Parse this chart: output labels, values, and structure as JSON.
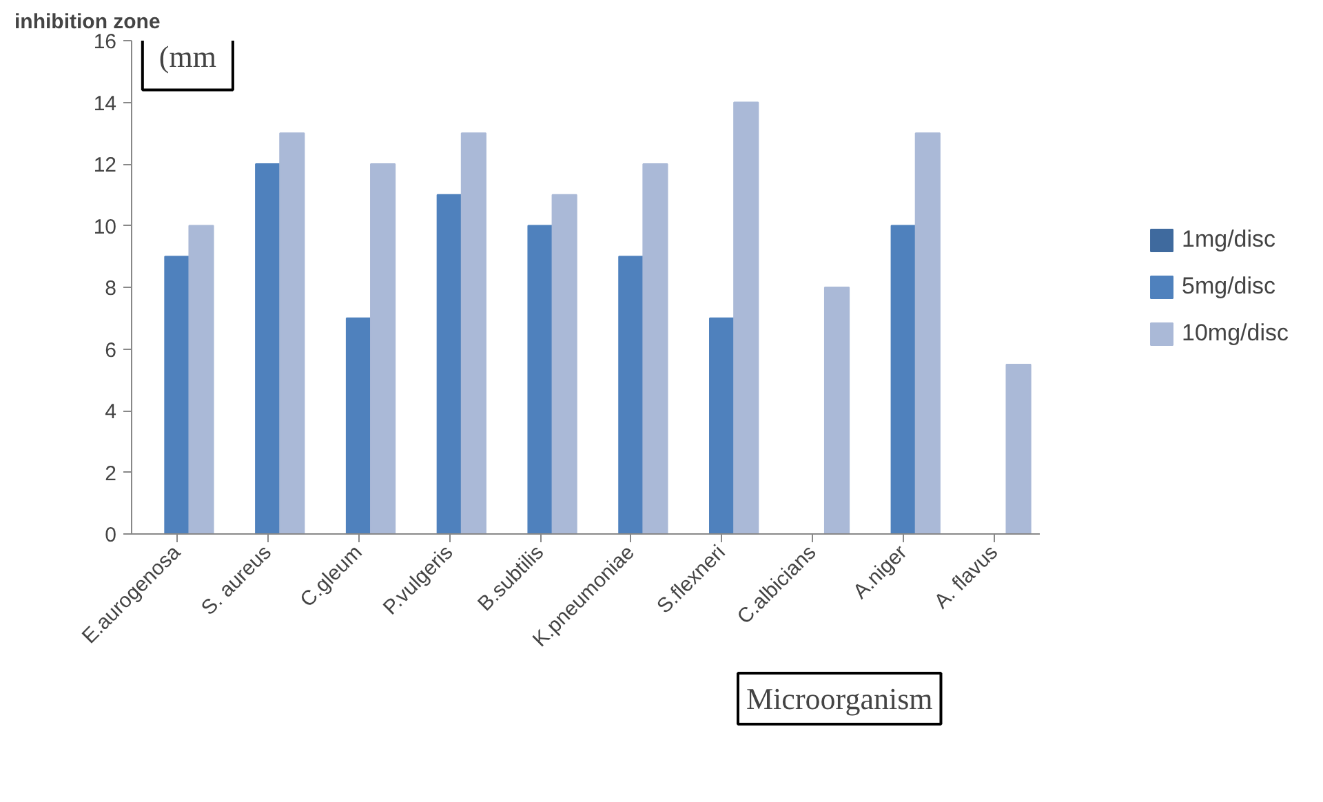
{
  "chart_data": {
    "type": "bar",
    "ylabel": "inhibition zone",
    "xlabel": "Microorganism",
    "annotations": [
      "(mm"
    ],
    "categories": [
      "E.aurogenosa",
      "S. aureus",
      "C.gleum",
      "P.vulgeris",
      "B.subtilis",
      "K.pneumoniae",
      "S.flexneri",
      "C.albicians",
      "A.niger",
      "A. flavus"
    ],
    "series": [
      {
        "name": "1mg/disc",
        "color": "#3f6a9e",
        "values": [
          0,
          0,
          0,
          0,
          0,
          0,
          0,
          0,
          0,
          0
        ]
      },
      {
        "name": "5mg/disc",
        "color": "#4f81bd",
        "values": [
          9,
          12,
          7,
          11,
          10,
          9,
          7,
          0,
          10,
          0
        ]
      },
      {
        "name": "10mg/disc",
        "color": "#aab9d7",
        "values": [
          10,
          13,
          12,
          13,
          11,
          12,
          14,
          8,
          13,
          5.5
        ]
      }
    ],
    "ylim": [
      0,
      16
    ],
    "yticks": [
      0,
      2,
      4,
      6,
      8,
      10,
      12,
      14,
      16
    ],
    "grid": false,
    "legend": "right"
  }
}
